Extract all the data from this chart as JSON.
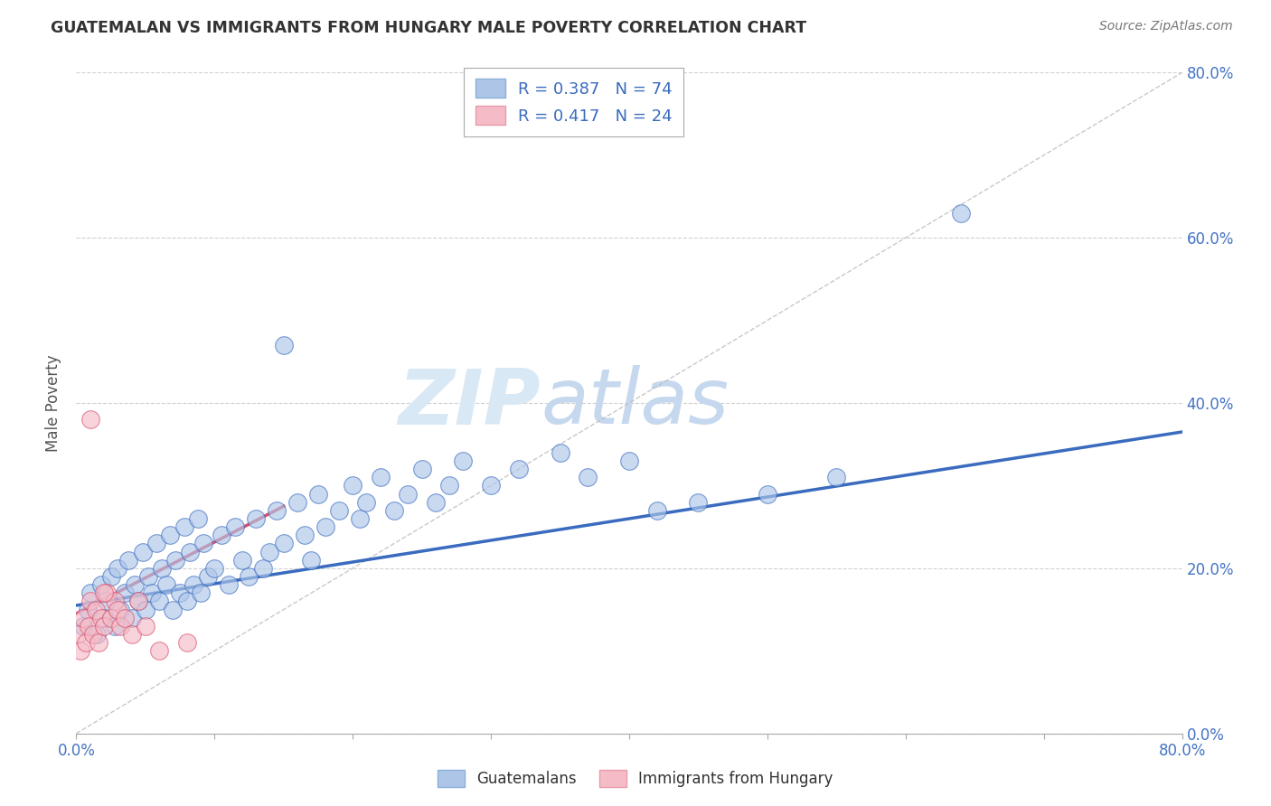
{
  "title": "GUATEMALAN VS IMMIGRANTS FROM HUNGARY MALE POVERTY CORRELATION CHART",
  "source": "Source: ZipAtlas.com",
  "ylabel": "Male Poverty",
  "legend1_label": "Guatemalans",
  "legend2_label": "Immigrants from Hungary",
  "r1": 0.387,
  "n1": 74,
  "r2": 0.417,
  "n2": 24,
  "color_blue": "#adc6e8",
  "color_pink": "#f5bcc8",
  "line_blue": "#3a6bbf",
  "line_pink": "#d94f6a",
  "watermark_zip": "ZIP",
  "watermark_atlas": "atlas",
  "xlim": [
    0.0,
    0.8
  ],
  "ylim": [
    0.0,
    0.8
  ],
  "blue_line_x0": 0.0,
  "blue_line_y0": 0.155,
  "blue_line_x1": 0.8,
  "blue_line_y1": 0.365,
  "pink_line_x0": 0.0,
  "pink_line_y0": 0.145,
  "pink_line_x1": 0.15,
  "pink_line_y1": 0.275,
  "guat_x": [
    0.005,
    0.008,
    0.01,
    0.015,
    0.018,
    0.02,
    0.022,
    0.025,
    0.028,
    0.03,
    0.032,
    0.035,
    0.038,
    0.04,
    0.042,
    0.045,
    0.048,
    0.05,
    0.052,
    0.055,
    0.058,
    0.06,
    0.062,
    0.065,
    0.068,
    0.07,
    0.072,
    0.075,
    0.078,
    0.08,
    0.082,
    0.085,
    0.088,
    0.09,
    0.092,
    0.095,
    0.1,
    0.105,
    0.11,
    0.115,
    0.12,
    0.125,
    0.13,
    0.135,
    0.14,
    0.145,
    0.15,
    0.16,
    0.165,
    0.17,
    0.175,
    0.18,
    0.19,
    0.2,
    0.205,
    0.21,
    0.22,
    0.23,
    0.24,
    0.25,
    0.26,
    0.27,
    0.28,
    0.3,
    0.32,
    0.35,
    0.37,
    0.4,
    0.42,
    0.45,
    0.5,
    0.55,
    0.64,
    0.15
  ],
  "guat_y": [
    0.13,
    0.15,
    0.17,
    0.12,
    0.18,
    0.14,
    0.16,
    0.19,
    0.13,
    0.2,
    0.15,
    0.17,
    0.21,
    0.14,
    0.18,
    0.16,
    0.22,
    0.15,
    0.19,
    0.17,
    0.23,
    0.16,
    0.2,
    0.18,
    0.24,
    0.15,
    0.21,
    0.17,
    0.25,
    0.16,
    0.22,
    0.18,
    0.26,
    0.17,
    0.23,
    0.19,
    0.2,
    0.24,
    0.18,
    0.25,
    0.21,
    0.19,
    0.26,
    0.2,
    0.22,
    0.27,
    0.23,
    0.28,
    0.24,
    0.21,
    0.29,
    0.25,
    0.27,
    0.3,
    0.26,
    0.28,
    0.31,
    0.27,
    0.29,
    0.32,
    0.28,
    0.3,
    0.33,
    0.3,
    0.32,
    0.34,
    0.31,
    0.33,
    0.27,
    0.28,
    0.29,
    0.31,
    0.63,
    0.47
  ],
  "hung_x": [
    0.001,
    0.003,
    0.005,
    0.007,
    0.009,
    0.01,
    0.012,
    0.014,
    0.016,
    0.018,
    0.02,
    0.022,
    0.025,
    0.028,
    0.03,
    0.032,
    0.035,
    0.04,
    0.045,
    0.05,
    0.06,
    0.08,
    0.01,
    0.02
  ],
  "hung_y": [
    0.12,
    0.1,
    0.14,
    0.11,
    0.13,
    0.16,
    0.12,
    0.15,
    0.11,
    0.14,
    0.13,
    0.17,
    0.14,
    0.16,
    0.15,
    0.13,
    0.14,
    0.12,
    0.16,
    0.13,
    0.1,
    0.11,
    0.38,
    0.17
  ]
}
